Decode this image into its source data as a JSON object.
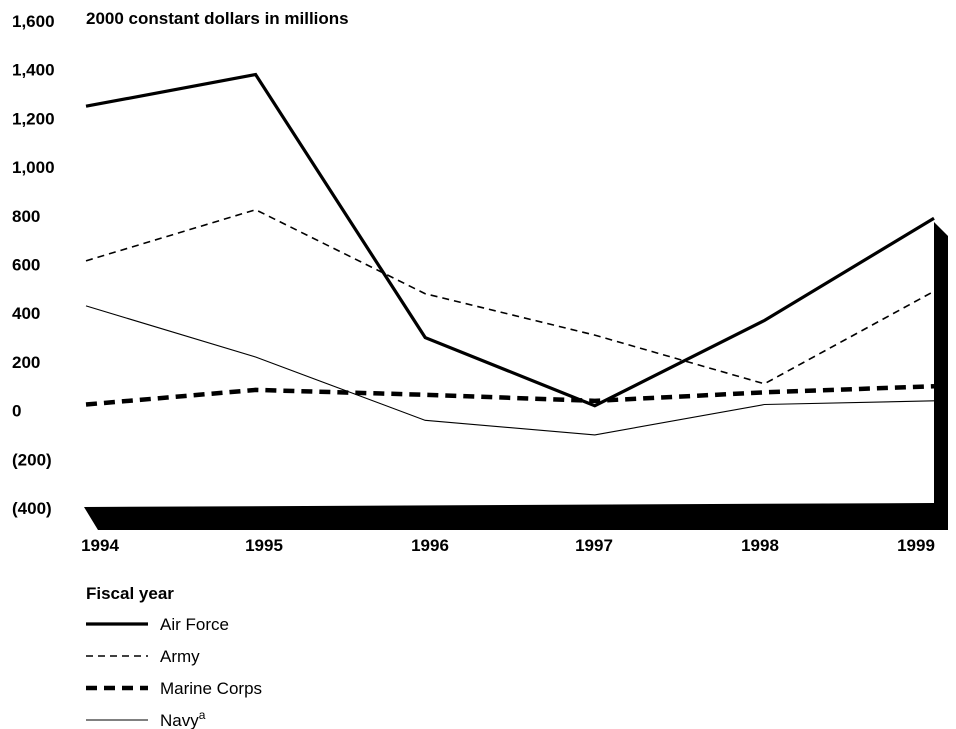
{
  "chart_data": {
    "type": "line",
    "title": "2000 constant dollars in millions",
    "xlabel": "Fiscal year",
    "ylabel": "",
    "x": [
      "1994",
      "1995",
      "1996",
      "1997",
      "1998",
      "1999"
    ],
    "ylim": [
      -400,
      1600
    ],
    "yticks": [
      "1,600",
      "1,400",
      "1,200",
      "1,000",
      "800",
      "600",
      "400",
      "200",
      "0",
      "(200)",
      "(400)"
    ],
    "grid": false,
    "legend_placement": "bottom-left",
    "series": [
      {
        "name": "Air Force",
        "values": [
          1250,
          1380,
          300,
          20,
          370,
          790
        ]
      },
      {
        "name": "Army",
        "values": [
          615,
          825,
          480,
          310,
          110,
          490
        ]
      },
      {
        "name": "Marine Corps",
        "values": [
          25,
          85,
          65,
          40,
          75,
          100
        ]
      },
      {
        "name": "Navy",
        "name_suffix": "a",
        "values": [
          430,
          220,
          -40,
          -100,
          25,
          40
        ]
      }
    ]
  }
}
